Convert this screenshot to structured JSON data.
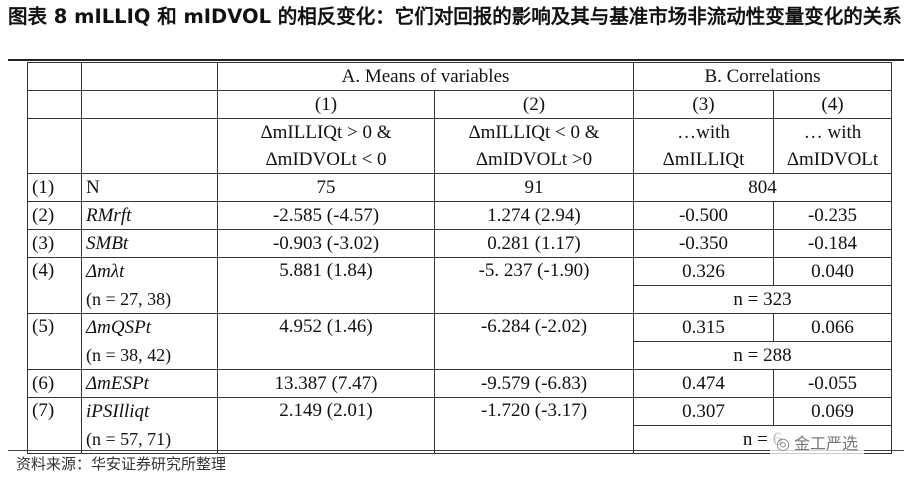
{
  "caption": "图表 8 mILLIQ 和 mIDVOL 的相反变化：它们对回报的影响及其与基准市场非流动性变量变化的关系",
  "panels": {
    "a": "A. Means of variables",
    "b": "B. Correlations"
  },
  "columns": {
    "c1_num": "(1)",
    "c2_num": "(2)",
    "c3_num": "(3)",
    "c4_num": "(4)",
    "c1_l1": "ΔmILLIQt > 0 &",
    "c1_l2": "ΔmIDVOLt < 0",
    "c2_l1": "ΔmILLIQt < 0 &",
    "c2_l2": "ΔmIDVOLt >0",
    "c3_l1": "…with",
    "c3_l2": "ΔmILLIQt",
    "c4_l1": "… with",
    "c4_l2": "ΔmIDVOLt"
  },
  "rows": {
    "r1": {
      "num": "(1)",
      "label": "N",
      "c1": "75",
      "c2": "91",
      "corr": "804"
    },
    "r2": {
      "num": "(2)",
      "label": "RMrft",
      "c1": "-2.585  (-4.57)",
      "c2": "1.274  (2.94)",
      "c3": "-0.500",
      "c4": "-0.235"
    },
    "r3": {
      "num": "(3)",
      "label": "SMBt",
      "c1": "-0.903  (-3.02)",
      "c2": "0.281 (1.17)",
      "c3": "-0.350",
      "c4": "-0.184"
    },
    "r4": {
      "num": "(4)",
      "label": "Δmλt",
      "sub": "(n = 27, 38)",
      "c1": "5.881 (1.84)",
      "c2": "-5. 237 (-1.90)",
      "c3": "0.326",
      "c4": "0.040",
      "n": "n = 323"
    },
    "r5": {
      "num": "(5)",
      "label": "ΔmQSPt",
      "sub": "(n = 38, 42)",
      "c1": "4.952 (1.46)",
      "c2": "-6.284 (-2.02)",
      "c3": "0.315",
      "c4": "0.066",
      "n": "n = 288"
    },
    "r6": {
      "num": "(6)",
      "label": "ΔmESPt",
      "c1": "13.387 (7.47)",
      "c2": "-9.579 (-6.83)",
      "c3": "0.474",
      "c4": "-0.055"
    },
    "r7": {
      "num": "(7)",
      "label": "iPSIlliqt",
      "sub": "(n = 57, 71)",
      "c1": "2.149 (2.01)",
      "c2": "-1.720 (-3.17)",
      "c3": "0.307",
      "c4": "0.069",
      "n": "n = 6"
    }
  },
  "source": "资料来源：华安证券研究所整理",
  "watermark": "金工严选"
}
